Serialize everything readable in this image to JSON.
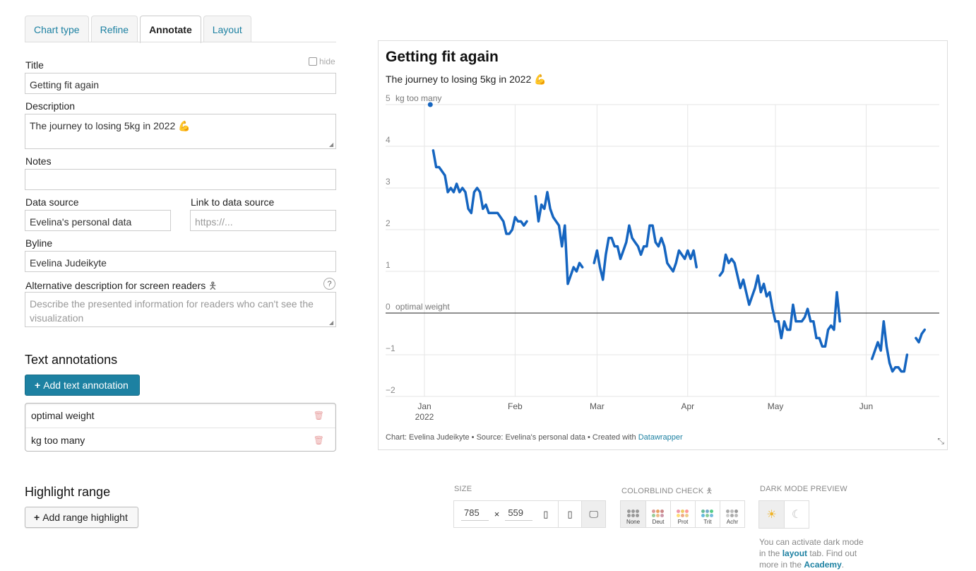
{
  "tabs": [
    {
      "label": "Chart type"
    },
    {
      "label": "Refine"
    },
    {
      "label": "Annotate"
    },
    {
      "label": "Layout"
    }
  ],
  "form": {
    "title_label": "Title",
    "title_value": "Getting fit again",
    "hide_label": "hide",
    "description_label": "Description",
    "description_value": "The journey to losing 5kg in 2022 💪",
    "notes_label": "Notes",
    "notes_value": "",
    "source_label": "Data source",
    "source_value": "Evelina's personal data",
    "link_label": "Link to data source",
    "link_placeholder": "https://...",
    "byline_label": "Byline",
    "byline_value": "Evelina Judeikyte",
    "alt_label": "Alternative description for screen readers",
    "help_icon": "?",
    "alt_placeholder": "Describe the presented information for readers who can't see the visualization"
  },
  "annotations": {
    "heading": "Text annotations",
    "add_label": "Add text annotation",
    "items": [
      "optimal weight",
      "kg too many"
    ]
  },
  "highlight": {
    "heading": "Highlight range",
    "add_label": "Add range highlight"
  },
  "chart": {
    "title": "Getting fit again",
    "subtitle": "The journey to losing 5kg in 2022 💪",
    "footer_prefix": "Chart: Evelina Judeikyte • Source: Evelina's personal data • Created with ",
    "footer_link": "Datawrapper"
  },
  "chart_data": {
    "type": "line",
    "title": "Getting fit again",
    "subtitle": "The journey to losing 5kg in 2022 💪",
    "ylim": [
      -2,
      5
    ],
    "y_ticks": [
      "5",
      "4",
      "3",
      "2",
      "1",
      "0",
      "−1",
      "−2"
    ],
    "x_ticks": [
      "Jan\n2022",
      "Feb",
      "Mar",
      "Apr",
      "May",
      "Jun"
    ],
    "color": "#1565c0",
    "annotations": [
      "optimal weight",
      "kg too many"
    ],
    "reference_line": 0,
    "series": [
      {
        "values": [
          [
            "2022-01-04",
            3.9
          ],
          [
            "2022-01-05",
            3.5
          ],
          [
            "2022-01-06",
            3.5
          ],
          [
            "2022-01-07",
            3.4
          ],
          [
            "2022-01-08",
            3.3
          ],
          [
            "2022-01-09",
            2.9
          ],
          [
            "2022-01-10",
            3.0
          ],
          [
            "2022-01-11",
            2.9
          ],
          [
            "2022-01-12",
            3.1
          ],
          [
            "2022-01-13",
            2.9
          ],
          [
            "2022-01-14",
            3.0
          ],
          [
            "2022-01-15",
            2.9
          ],
          [
            "2022-01-16",
            2.5
          ],
          [
            "2022-01-17",
            2.4
          ],
          [
            "2022-01-18",
            2.9
          ],
          [
            "2022-01-19",
            3.0
          ],
          [
            "2022-01-20",
            2.9
          ],
          [
            "2022-01-21",
            2.5
          ],
          [
            "2022-01-22",
            2.6
          ],
          [
            "2022-01-23",
            2.4
          ],
          [
            "2022-01-24",
            2.4
          ],
          [
            "2022-01-25",
            2.4
          ],
          [
            "2022-01-26",
            2.4
          ],
          [
            "2022-01-27",
            2.3
          ],
          [
            "2022-01-28",
            2.2
          ],
          [
            "2022-01-29",
            1.9
          ],
          [
            "2022-01-30",
            1.9
          ],
          [
            "2022-01-31",
            2.0
          ],
          [
            "2022-02-01",
            2.3
          ],
          [
            "2022-02-02",
            2.2
          ],
          [
            "2022-02-03",
            2.2
          ],
          [
            "2022-02-04",
            2.1
          ],
          [
            "2022-02-05",
            2.2
          ],
          [
            "2022-02-08",
            2.8
          ],
          [
            "2022-02-09",
            2.2
          ],
          [
            "2022-02-10",
            2.6
          ],
          [
            "2022-02-11",
            2.5
          ],
          [
            "2022-02-12",
            2.9
          ],
          [
            "2022-02-13",
            2.5
          ],
          [
            "2022-02-14",
            2.3
          ],
          [
            "2022-02-15",
            2.2
          ],
          [
            "2022-02-16",
            2.1
          ],
          [
            "2022-02-17",
            1.6
          ],
          [
            "2022-02-18",
            2.1
          ],
          [
            "2022-02-19",
            0.7
          ],
          [
            "2022-02-20",
            0.9
          ],
          [
            "2022-02-21",
            1.1
          ],
          [
            "2022-02-22",
            1.0
          ],
          [
            "2022-02-23",
            1.2
          ],
          [
            "2022-02-24",
            1.1
          ],
          [
            "2022-02-28",
            1.2
          ],
          [
            "2022-03-01",
            1.5
          ],
          [
            "2022-03-02",
            1.1
          ],
          [
            "2022-03-03",
            0.8
          ],
          [
            "2022-03-04",
            1.4
          ],
          [
            "2022-03-05",
            1.8
          ],
          [
            "2022-03-06",
            1.8
          ],
          [
            "2022-03-07",
            1.6
          ],
          [
            "2022-03-08",
            1.6
          ],
          [
            "2022-03-09",
            1.3
          ],
          [
            "2022-03-10",
            1.5
          ],
          [
            "2022-03-11",
            1.7
          ],
          [
            "2022-03-12",
            2.1
          ],
          [
            "2022-03-13",
            1.8
          ],
          [
            "2022-03-14",
            1.7
          ],
          [
            "2022-03-15",
            1.6
          ],
          [
            "2022-03-16",
            1.4
          ],
          [
            "2022-03-17",
            1.6
          ],
          [
            "2022-03-18",
            1.6
          ],
          [
            "2022-03-19",
            2.1
          ],
          [
            "2022-03-20",
            2.1
          ],
          [
            "2022-03-21",
            1.7
          ],
          [
            "2022-03-22",
            1.6
          ],
          [
            "2022-03-23",
            1.8
          ],
          [
            "2022-03-24",
            1.6
          ],
          [
            "2022-03-25",
            1.2
          ],
          [
            "2022-03-26",
            1.1
          ],
          [
            "2022-03-27",
            1.0
          ],
          [
            "2022-03-28",
            1.2
          ],
          [
            "2022-03-29",
            1.5
          ],
          [
            "2022-03-30",
            1.4
          ],
          [
            "2022-03-31",
            1.3
          ],
          [
            "2022-04-01",
            1.5
          ],
          [
            "2022-04-02",
            1.3
          ],
          [
            "2022-04-03",
            1.5
          ],
          [
            "2022-04-04",
            1.1
          ],
          [
            "2022-04-12",
            0.9
          ],
          [
            "2022-04-13",
            1.0
          ],
          [
            "2022-04-14",
            1.4
          ],
          [
            "2022-04-15",
            1.2
          ],
          [
            "2022-04-16",
            1.3
          ],
          [
            "2022-04-17",
            1.2
          ],
          [
            "2022-04-18",
            0.9
          ],
          [
            "2022-04-19",
            0.6
          ],
          [
            "2022-04-20",
            0.8
          ],
          [
            "2022-04-21",
            0.5
          ],
          [
            "2022-04-22",
            0.2
          ],
          [
            "2022-04-23",
            0.4
          ],
          [
            "2022-04-24",
            0.6
          ],
          [
            "2022-04-25",
            0.9
          ],
          [
            "2022-04-26",
            0.5
          ],
          [
            "2022-04-27",
            0.7
          ],
          [
            "2022-04-28",
            0.4
          ],
          [
            "2022-04-29",
            0.5
          ],
          [
            "2022-04-30",
            0.1
          ],
          [
            "2022-05-01",
            -0.2
          ],
          [
            "2022-05-02",
            -0.2
          ],
          [
            "2022-05-03",
            -0.6
          ],
          [
            "2022-05-04",
            -0.2
          ],
          [
            "2022-05-05",
            -0.4
          ],
          [
            "2022-05-06",
            -0.4
          ],
          [
            "2022-05-07",
            0.2
          ],
          [
            "2022-05-08",
            -0.2
          ],
          [
            "2022-05-09",
            -0.2
          ],
          [
            "2022-05-10",
            -0.2
          ],
          [
            "2022-05-11",
            -0.1
          ],
          [
            "2022-05-12",
            0.1
          ],
          [
            "2022-05-13",
            -0.2
          ],
          [
            "2022-05-14",
            -0.2
          ],
          [
            "2022-05-15",
            -0.6
          ],
          [
            "2022-05-16",
            -0.6
          ],
          [
            "2022-05-17",
            -0.8
          ],
          [
            "2022-05-18",
            -0.8
          ],
          [
            "2022-05-19",
            -0.4
          ],
          [
            "2022-05-20",
            -0.3
          ],
          [
            "2022-05-21",
            -0.4
          ],
          [
            "2022-05-22",
            0.5
          ],
          [
            "2022-05-23",
            -0.2
          ],
          [
            "2022-06-03",
            -1.1
          ],
          [
            "2022-06-04",
            -0.9
          ],
          [
            "2022-06-05",
            -0.7
          ],
          [
            "2022-06-06",
            -0.9
          ],
          [
            "2022-06-07",
            -0.2
          ],
          [
            "2022-06-08",
            -0.8
          ],
          [
            "2022-06-09",
            -1.2
          ],
          [
            "2022-06-10",
            -1.4
          ],
          [
            "2022-06-11",
            -1.3
          ],
          [
            "2022-06-12",
            -1.3
          ],
          [
            "2022-06-13",
            -1.4
          ],
          [
            "2022-06-14",
            -1.4
          ],
          [
            "2022-06-15",
            -1.0
          ],
          [
            "2022-06-18",
            -0.6
          ],
          [
            "2022-06-19",
            -0.7
          ],
          [
            "2022-06-20",
            -0.5
          ],
          [
            "2022-06-21",
            -0.4
          ]
        ]
      }
    ]
  },
  "controls": {
    "size_label": "SIZE",
    "width": "785",
    "times": "×",
    "height": "559",
    "colorblind_label": "COLORBLIND CHECK",
    "colorblind_opts": [
      "None",
      "Deut",
      "Prot",
      "Trit",
      "Achr"
    ],
    "dark_label": "DARK MODE PREVIEW",
    "dark_text_1": "You can activate dark mode in the ",
    "dark_link_1": "layout",
    "dark_text_2": " tab. Find out more in the ",
    "dark_link_2": "Academy",
    "dark_text_3": "."
  }
}
